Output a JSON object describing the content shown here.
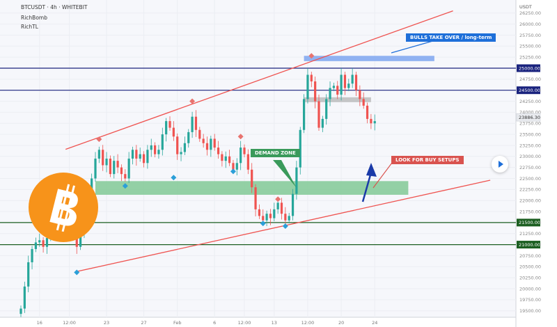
{
  "header": {
    "title": "BTCUSDT · 4h · WHITEBIT",
    "indicators": [
      "RichBomb",
      "RichTL"
    ]
  },
  "annotations": {
    "bulls": "BULLS TAKE OVER / long-term",
    "demand": "DEMAND ZONE",
    "buy": "LOOK FOR BUY SETUPS"
  },
  "colors": {
    "background": "#f6f7fb",
    "up": "#26a69a",
    "down": "#ef5350",
    "trend": "#ef5350",
    "blue_level": "#1a237e",
    "green_level": "#1b5e20",
    "demand_zone": "#81c995",
    "bulls_zone": "#7ea6f0",
    "grey_zone": "#b0b0b0",
    "bulls_badge": "#1e6fd9",
    "demand_badge": "#3a9a5b",
    "buy_badge": "#d9534f",
    "arrow": "#1a3aa8"
  },
  "chart_data": {
    "type": "candlestick",
    "symbol": "BTCUSDT",
    "interval": "4h",
    "exchange": "WHITEBIT",
    "ylim": [
      19250,
      26500
    ],
    "y_ticks": [
      19500,
      19750,
      20000,
      20250,
      20500,
      20750,
      21000,
      21250,
      21500,
      21750,
      22000,
      22250,
      22500,
      22750,
      23000,
      23250,
      23500,
      23750,
      24000,
      24250,
      24500,
      24750,
      25000,
      25250,
      25500,
      25750,
      26000,
      26250
    ],
    "y_tick_labels": [
      "19500.00",
      "19750.00",
      "20000.00",
      "20250.00",
      "20500.00",
      "20750.00",
      "21000.00",
      "21250.00",
      "21500.00",
      "21750.00",
      "22000.00",
      "22250.00",
      "22500.00",
      "22750.00",
      "23000.00",
      "23250.00",
      "23500.00",
      "23750.00",
      "24000.00",
      "24250.00",
      "24500.00",
      "24750.00",
      "25000.00",
      "25250.00",
      "25500.00",
      "25750.00",
      "26000.00",
      "26250.00"
    ],
    "top_axis_label": "USDT",
    "x_ticks": [
      "16",
      "12:00",
      "23",
      "27",
      "Feb",
      "6",
      "12:00",
      "13",
      "12:00",
      "20",
      "24"
    ],
    "x_tick_index": [
      5,
      13,
      23,
      33,
      42,
      52,
      60,
      68,
      77,
      86,
      95
    ],
    "last_price": 23886.3,
    "last_price_label": "23886.30",
    "levels": [
      {
        "price": 25000,
        "label": "25000.00",
        "color": "blue"
      },
      {
        "price": 24500,
        "label": "24500.00",
        "color": "blue"
      },
      {
        "price": 21500,
        "label": "21500.00",
        "color": "green"
      },
      {
        "price": 21000,
        "label": "21000.00",
        "color": "green"
      }
    ],
    "zones": [
      {
        "name": "demand",
        "from_index": 20,
        "to_index": 104,
        "low": 22130,
        "high": 22440
      },
      {
        "name": "bulls",
        "from_index": 76,
        "to_index": 111,
        "low": 25160,
        "high": 25280
      },
      {
        "name": "grey",
        "from_index": 76,
        "to_index": 94,
        "low": 24230,
        "high": 24340
      }
    ],
    "trend_lines": [
      {
        "x1": 12,
        "y1": 23160,
        "x2": 116,
        "y2": 26300
      },
      {
        "x1": 15,
        "y1": 20390,
        "x2": 126,
        "y2": 22460
      }
    ],
    "markers": [
      {
        "index": 15,
        "price": 20370,
        "dir": "down"
      },
      {
        "index": 21,
        "price": 23390,
        "dir": "up"
      },
      {
        "index": 28,
        "price": 22330,
        "dir": "down"
      },
      {
        "index": 41,
        "price": 22520,
        "dir": "down"
      },
      {
        "index": 46,
        "price": 24250,
        "dir": "up"
      },
      {
        "index": 57,
        "price": 22660,
        "dir": "down"
      },
      {
        "index": 59,
        "price": 23450,
        "dir": "up"
      },
      {
        "index": 65,
        "price": 21480,
        "dir": "down"
      },
      {
        "index": 69,
        "price": 22030,
        "dir": "up"
      },
      {
        "index": 71,
        "price": 21420,
        "dir": "down"
      },
      {
        "index": 78,
        "price": 25280,
        "dir": "up"
      }
    ],
    "closes": [
      19550,
      20050,
      20600,
      20900,
      21050,
      21100,
      20950,
      21150,
      21300,
      21250,
      21400,
      21550,
      21650,
      21450,
      21300,
      20950,
      21250,
      21600,
      22050,
      22500,
      22950,
      23150,
      22800,
      22950,
      22600,
      22900,
      22750,
      22600,
      22500,
      22950,
      23150,
      22950,
      23050,
      22850,
      23150,
      23250,
      23050,
      23150,
      23500,
      23800,
      23650,
      23450,
      23050,
      23100,
      23300,
      23550,
      23900,
      23600,
      23400,
      23300,
      23150,
      23400,
      23200,
      23050,
      22900,
      23000,
      22850,
      22700,
      22850,
      23200,
      23050,
      22700,
      22300,
      21800,
      21650,
      21550,
      21700,
      21600,
      21800,
      21950,
      21700,
      21550,
      21650,
      22150,
      22750,
      23600,
      24300,
      24850,
      24700,
      24250,
      23650,
      23850,
      24300,
      24550,
      24600,
      24400,
      24850,
      24550,
      24650,
      24850,
      24500,
      24300,
      24150,
      23850,
      23750,
      23800
    ]
  }
}
